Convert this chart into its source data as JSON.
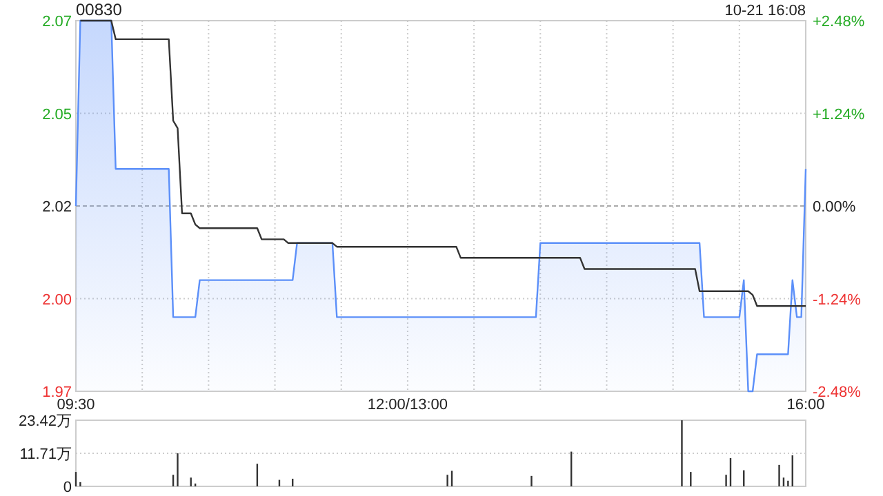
{
  "chart_data": [
    {
      "type": "area",
      "title": "00830",
      "annotations": [
        "10-21 16:08"
      ],
      "categories": [
        "09:30",
        null,
        null,
        null,
        null,
        null,
        null,
        null,
        null,
        null,
        null,
        null,
        null,
        null,
        null,
        null,
        null,
        null,
        null,
        null,
        null,
        null,
        null,
        null,
        null,
        null,
        null,
        null,
        null,
        null,
        null,
        null,
        null,
        null,
        null,
        null,
        null,
        null,
        null,
        null,
        null,
        null,
        null,
        null,
        null,
        null,
        null,
        null,
        null,
        null,
        null,
        null,
        null,
        null,
        null,
        null,
        null,
        null,
        null,
        null,
        null,
        null,
        null,
        null,
        null,
        null,
        null,
        null,
        null,
        null,
        null,
        null,
        null,
        null,
        null,
        "12:00/13:00",
        null,
        null,
        null,
        null,
        null,
        null,
        null,
        null,
        null,
        null,
        null,
        null,
        null,
        null,
        null,
        null,
        null,
        null,
        null,
        null,
        null,
        null,
        null,
        null,
        null,
        null,
        null,
        null,
        null,
        null,
        null,
        null,
        null,
        null,
        null,
        null,
        null,
        null,
        null,
        null,
        null,
        null,
        null,
        null,
        null,
        null,
        null,
        null,
        null,
        null,
        null,
        null,
        null,
        null,
        null,
        null,
        null,
        null,
        null,
        null,
        null,
        null,
        null,
        null,
        null,
        null,
        null,
        null,
        null,
        null,
        null,
        null,
        null,
        null,
        null,
        null,
        null,
        null,
        null,
        null,
        null,
        null,
        null,
        null,
        null,
        null,
        null,
        null,
        null,
        "16:00"
      ],
      "ylim": [
        1.97,
        2.07
      ],
      "yticks": [
        {
          "value": 1.97,
          "label": "1.97"
        },
        {
          "value": 1.995,
          "label": "2.00"
        },
        {
          "value": 2.02,
          "label": "2.02"
        },
        {
          "value": 2.045,
          "label": "2.05"
        },
        {
          "value": 2.07,
          "label": "2.07"
        }
      ],
      "y2lim": [
        -2.48,
        2.48
      ],
      "y2ticks": [
        {
          "value": -2.48,
          "label": "-2.48%"
        },
        {
          "value": -1.24,
          "label": "-1.24%"
        },
        {
          "value": 0,
          "label": "0.00%"
        },
        {
          "value": 1.24,
          "label": "+1.24%"
        },
        {
          "value": 2.48,
          "label": "+2.48%"
        }
      ],
      "grid": true,
      "series": [
        {
          "type": "area",
          "color": "#5b8ff9",
          "values": [
            2.02,
            2.07,
            2.07,
            2.07,
            2.07,
            2.07,
            2.07,
            2.07,
            2.07,
            2.03,
            2.03,
            2.03,
            2.03,
            2.03,
            2.03,
            2.03,
            2.03,
            2.03,
            2.03,
            2.03,
            2.03,
            2.03,
            1.99,
            1.99,
            1.99,
            1.99,
            1.99,
            1.99,
            2.0,
            2.0,
            2.0,
            2.0,
            2.0,
            2.0,
            2.0,
            2.0,
            2.0,
            2.0,
            2.0,
            2.0,
            2.0,
            2.0,
            2.0,
            2.0,
            2.0,
            2.0,
            2.0,
            2.0,
            2.0,
            2.0,
            2.01,
            2.01,
            2.01,
            2.01,
            2.01,
            2.01,
            2.01,
            2.01,
            2.01,
            1.99,
            1.99,
            1.99,
            1.99,
            1.99,
            1.99,
            1.99,
            1.99,
            1.99,
            1.99,
            1.99,
            1.99,
            1.99,
            1.99,
            1.99,
            1.99,
            1.99,
            1.99,
            1.99,
            1.99,
            1.99,
            1.99,
            1.99,
            1.99,
            1.99,
            1.99,
            1.99,
            1.99,
            1.99,
            1.99,
            1.99,
            1.99,
            1.99,
            1.99,
            1.99,
            1.99,
            1.99,
            1.99,
            1.99,
            1.99,
            1.99,
            1.99,
            1.99,
            1.99,
            1.99,
            1.99,
            2.01,
            2.01,
            2.01,
            2.01,
            2.01,
            2.01,
            2.01,
            2.01,
            2.01,
            2.01,
            2.01,
            2.01,
            2.01,
            2.01,
            2.01,
            2.01,
            2.01,
            2.01,
            2.01,
            2.01,
            2.01,
            2.01,
            2.01,
            2.01,
            2.01,
            2.01,
            2.01,
            2.01,
            2.01,
            2.01,
            2.01,
            2.01,
            2.01,
            2.01,
            2.01,
            2.01,
            2.01,
            1.99,
            1.99,
            1.99,
            1.99,
            1.99,
            1.99,
            1.99,
            1.99,
            1.99,
            2.0,
            1.97,
            1.97,
            1.98,
            1.98,
            1.98,
            1.98,
            1.98,
            1.98,
            1.98,
            1.98,
            2.0,
            1.99,
            1.99,
            2.03
          ]
        },
        {
          "type": "line",
          "color": "#333333",
          "values": [
            null,
            2.07,
            2.07,
            2.07,
            2.07,
            2.07,
            2.07,
            2.07,
            2.07,
            2.065,
            2.065,
            2.065,
            2.065,
            2.065,
            2.065,
            2.065,
            2.065,
            2.065,
            2.065,
            2.065,
            2.065,
            2.065,
            2.043,
            2.041,
            2.018,
            2.018,
            2.018,
            2.015,
            2.014,
            2.014,
            2.014,
            2.014,
            2.014,
            2.014,
            2.014,
            2.014,
            2.014,
            2.014,
            2.014,
            2.014,
            2.014,
            2.014,
            2.011,
            2.011,
            2.011,
            2.011,
            2.011,
            2.011,
            2.01,
            2.01,
            2.01,
            2.01,
            2.01,
            2.01,
            2.01,
            2.01,
            2.01,
            2.01,
            2.01,
            2.009,
            2.009,
            2.009,
            2.009,
            2.009,
            2.009,
            2.009,
            2.009,
            2.009,
            2.009,
            2.009,
            2.009,
            2.009,
            2.009,
            2.009,
            2.009,
            2.009,
            2.009,
            2.009,
            2.009,
            2.009,
            2.009,
            2.009,
            2.009,
            2.009,
            2.009,
            2.009,
            2.009,
            2.006,
            2.006,
            2.006,
            2.006,
            2.006,
            2.006,
            2.006,
            2.006,
            2.006,
            2.006,
            2.006,
            2.006,
            2.006,
            2.006,
            2.006,
            2.006,
            2.006,
            2.006,
            2.006,
            2.006,
            2.006,
            2.006,
            2.006,
            2.006,
            2.006,
            2.006,
            2.006,
            2.006,
            2.003,
            2.003,
            2.003,
            2.003,
            2.003,
            2.003,
            2.003,
            2.003,
            2.003,
            2.003,
            2.003,
            2.003,
            2.003,
            2.003,
            2.003,
            2.003,
            2.003,
            2.003,
            2.003,
            2.003,
            2.003,
            2.003,
            2.003,
            2.003,
            2.003,
            2.003,
            1.997,
            1.997,
            1.997,
            1.997,
            1.997,
            1.997,
            1.997,
            1.997,
            1.997,
            1.997,
            1.997,
            1.997,
            1.996,
            1.993,
            1.993,
            1.993,
            1.993,
            1.993,
            1.993,
            1.993,
            1.993,
            1.993,
            1.993,
            1.993,
            1.993
          ]
        }
      ]
    },
    {
      "type": "bar",
      "color": "#333333",
      "categories": [
        null,
        null,
        null,
        null,
        null,
        null,
        null,
        null,
        null,
        null,
        null,
        null,
        null,
        null,
        null,
        null,
        null,
        null,
        null,
        null,
        null,
        null,
        null,
        null,
        null,
        null,
        null,
        null,
        null,
        null,
        null,
        null,
        null,
        null,
        null,
        null,
        null,
        null,
        null,
        null,
        null,
        null,
        null,
        null,
        null,
        null,
        null,
        null,
        null,
        null,
        null,
        null,
        null,
        null,
        null,
        null,
        null,
        null,
        null,
        null,
        null,
        null,
        null,
        null,
        null,
        null,
        null,
        null,
        null,
        null,
        null,
        null,
        null,
        null,
        null,
        null,
        null,
        null,
        null,
        null,
        null,
        null,
        null,
        null,
        null,
        null,
        null,
        null,
        null,
        null,
        null,
        null,
        null,
        null,
        null,
        null,
        null,
        null,
        null,
        null,
        null,
        null,
        null,
        null,
        null,
        null,
        null,
        null,
        null,
        null,
        null,
        null,
        null,
        null,
        null,
        null,
        null,
        null,
        null,
        null,
        null,
        null,
        null,
        null,
        null,
        null,
        null,
        null,
        null,
        null,
        null,
        null,
        null,
        null,
        null,
        null,
        null,
        null,
        null,
        null,
        null,
        null,
        null,
        null,
        null,
        null,
        null,
        null,
        null,
        null,
        null,
        null,
        null,
        null,
        null,
        null,
        null,
        null,
        null,
        null,
        null,
        null,
        null,
        null,
        null,
        null
      ],
      "ylim": [
        0,
        23.42
      ],
      "yticks": [
        0,
        {
          "value": 11.71,
          "label": "11.71万"
        },
        {
          "value": 23.42,
          "label": "23.42万"
        }
      ],
      "grid": "y",
      "tick_labels": "y",
      "values": [
        5.1,
        1.5,
        null,
        null,
        null,
        null,
        null,
        null,
        null,
        null,
        null,
        null,
        null,
        null,
        null,
        null,
        null,
        null,
        null,
        null,
        null,
        null,
        4.1,
        11.7,
        null,
        null,
        3.1,
        1.0,
        null,
        null,
        null,
        null,
        null,
        null,
        null,
        null,
        null,
        null,
        null,
        null,
        null,
        8.0,
        null,
        null,
        null,
        null,
        2.3,
        null,
        null,
        2.7,
        null,
        null,
        null,
        null,
        null,
        null,
        null,
        null,
        null,
        null,
        null,
        null,
        null,
        null,
        null,
        null,
        null,
        null,
        null,
        null,
        null,
        null,
        null,
        null,
        null,
        null,
        null,
        null,
        null,
        null,
        null,
        null,
        null,
        null,
        4.1,
        5.5,
        null,
        null,
        null,
        null,
        null,
        null,
        null,
        null,
        null,
        null,
        null,
        null,
        null,
        null,
        null,
        null,
        null,
        3.7,
        null,
        null,
        null,
        null,
        null,
        null,
        null,
        null,
        12.3,
        null,
        null,
        null,
        null,
        null,
        null,
        null,
        null,
        null,
        null,
        null,
        null,
        null,
        null,
        null,
        null,
        null,
        null,
        null,
        null,
        null,
        null,
        null,
        null,
        23.4,
        null,
        5.1,
        null,
        null,
        null,
        null,
        null,
        null,
        null,
        4.1,
        10.0,
        null,
        null,
        5.7,
        null,
        null,
        null,
        null,
        null,
        null,
        null,
        7.6,
        3.1,
        2.0,
        11.0,
        null,
        null,
        null
      ]
    }
  ]
}
